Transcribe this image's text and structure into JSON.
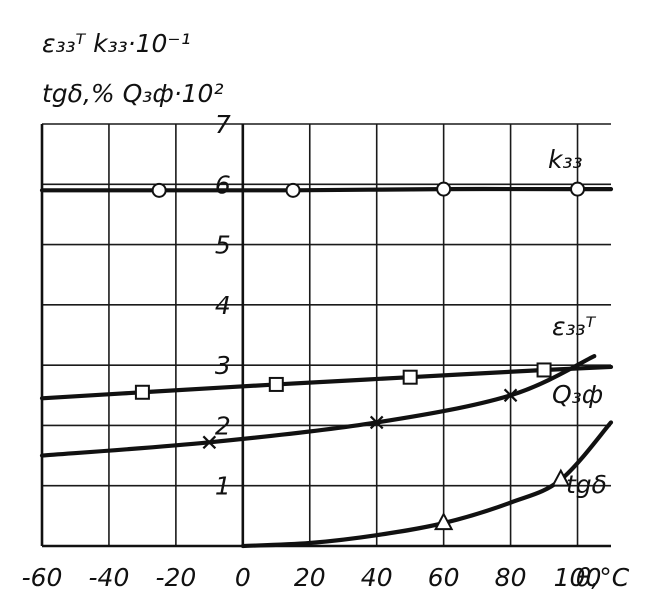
{
  "chart_data": {
    "type": "line",
    "title": "",
    "ylabel_lines": [
      "ε₃₃ᵀ  k₃₃·10⁻¹",
      "tgδ,%  Q₃ф·10²"
    ],
    "xlabel": "θ,°C",
    "xlim": [
      -60,
      110
    ],
    "ylim": [
      0,
      7
    ],
    "x_ticks": [
      "-60",
      "-40",
      "-20",
      "0",
      "20",
      "40",
      "60",
      "80",
      "100"
    ],
    "y_ticks": [
      "1",
      "2",
      "3",
      "4",
      "5",
      "6",
      "7"
    ],
    "grid": true,
    "series": [
      {
        "name": "k₃₃",
        "marker": "circle",
        "x": [
          -60,
          -25,
          15,
          60,
          100,
          110
        ],
        "y": [
          5.9,
          5.9,
          5.9,
          5.92,
          5.92,
          5.92
        ],
        "marker_x": [
          -25,
          15,
          60,
          100
        ],
        "marker_y": [
          5.9,
          5.9,
          5.92,
          5.92
        ]
      },
      {
        "name": "ε₃₃ᵀ",
        "marker": "square",
        "x": [
          -60,
          -30,
          10,
          50,
          90,
          110
        ],
        "y": [
          2.45,
          2.55,
          2.68,
          2.8,
          2.92,
          2.97
        ],
        "marker_x": [
          -30,
          10,
          50,
          90
        ],
        "marker_y": [
          2.55,
          2.68,
          2.8,
          2.92
        ]
      },
      {
        "name": "Q₃ф",
        "marker": "x",
        "x": [
          -60,
          -10,
          40,
          80,
          105
        ],
        "y": [
          1.5,
          1.72,
          2.05,
          2.5,
          3.15
        ],
        "marker_x": [
          -10,
          40,
          80
        ],
        "marker_y": [
          1.72,
          2.05,
          2.5
        ]
      },
      {
        "name": "tgδ",
        "marker": "triangle",
        "x": [
          0,
          20,
          40,
          60,
          80,
          95,
          110
        ],
        "y": [
          0,
          0.05,
          0.18,
          0.38,
          0.72,
          1.1,
          2.05
        ],
        "marker_x": [
          60,
          95
        ],
        "marker_y": [
          0.38,
          1.1
        ]
      }
    ]
  }
}
